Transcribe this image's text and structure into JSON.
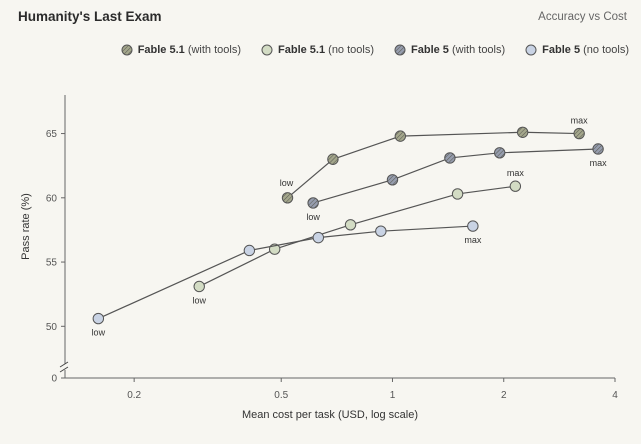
{
  "header": {
    "title": "Humanity's Last Exam",
    "subtitle": "Accuracy vs Cost"
  },
  "chart_data": {
    "type": "scatter",
    "title": "Humanity's Last Exam",
    "subtitle": "Accuracy vs Cost",
    "xlabel": "Mean cost per task (USD, log scale)",
    "ylabel": "Pass rate (%)",
    "x_scale": "log",
    "xlim": [
      0.13,
      4
    ],
    "ylim": [
      0,
      68
    ],
    "y_axis_break": true,
    "x_ticks": [
      {
        "value": 0.2,
        "label": "0.2"
      },
      {
        "value": 0.5,
        "label": "0.5"
      },
      {
        "value": 1,
        "label": "1"
      },
      {
        "value": 2,
        "label": "2"
      },
      {
        "value": 4,
        "label": "4"
      }
    ],
    "y_ticks": [
      {
        "value": 0,
        "label": "0"
      },
      {
        "value": 50,
        "label": "50"
      },
      {
        "value": 55,
        "label": "55"
      },
      {
        "value": 60,
        "label": "60"
      },
      {
        "value": 65,
        "label": "65"
      }
    ],
    "grid": false,
    "legend_position": "top-right",
    "series": [
      {
        "name": "Fable 5.1 (with tools)",
        "name_bold": "Fable 5.1",
        "name_rest": " (with tools)",
        "color": "#a4a78c",
        "hatched": true,
        "x": [
          0.52,
          0.69,
          1.05,
          2.25,
          3.2
        ],
        "y": [
          60.0,
          63.0,
          64.8,
          65.1,
          65.0
        ],
        "labels": [
          {
            "index": 0,
            "text": "low",
            "position": "above-left"
          },
          {
            "index": 4,
            "text": "max",
            "position": "above"
          }
        ]
      },
      {
        "name": "Fable 5.1 (no tools)",
        "name_bold": "Fable 5.1",
        "name_rest": " (no tools)",
        "color": "#d3dcc4",
        "hatched": false,
        "x": [
          0.3,
          0.48,
          0.77,
          1.5,
          2.15
        ],
        "y": [
          53.1,
          56.0,
          57.9,
          60.3,
          60.9
        ],
        "labels": [
          {
            "index": 0,
            "text": "low",
            "position": "below"
          },
          {
            "index": 4,
            "text": "max",
            "position": "above"
          }
        ]
      },
      {
        "name": "Fable 5 (with tools)",
        "name_bold": "Fable 5",
        "name_rest": " (with tools)",
        "color": "#969dae",
        "hatched": true,
        "x": [
          0.61,
          1.0,
          1.43,
          1.95,
          3.6
        ],
        "y": [
          59.6,
          61.4,
          63.1,
          63.5,
          63.8
        ],
        "labels": [
          {
            "index": 0,
            "text": "low",
            "position": "below"
          },
          {
            "index": 4,
            "text": "max",
            "position": "below"
          }
        ]
      },
      {
        "name": "Fable 5 (no tools)",
        "name_bold": "Fable 5",
        "name_rest": " (no tools)",
        "color": "#c9d3e4",
        "hatched": false,
        "x": [
          0.16,
          0.41,
          0.63,
          0.93,
          1.65
        ],
        "y": [
          50.6,
          55.9,
          56.9,
          57.4,
          57.8
        ],
        "labels": [
          {
            "index": 0,
            "text": "low",
            "position": "below"
          },
          {
            "index": 4,
            "text": "max",
            "position": "below"
          }
        ]
      }
    ]
  }
}
